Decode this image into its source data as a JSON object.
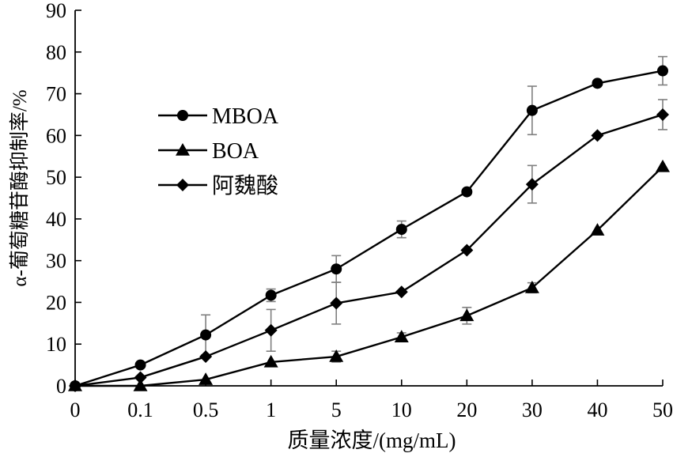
{
  "chart_data": {
    "type": "line",
    "xlabel": "质量浓度/(mg/mL)",
    "ylabel": "α-葡萄糖苷酶抑制率/%",
    "categories": [
      "0",
      "0.1",
      "0.5",
      "1",
      "5",
      "10",
      "20",
      "30",
      "40",
      "50"
    ],
    "ylim": [
      0,
      90
    ],
    "yticks": [
      "0",
      "10",
      "20",
      "30",
      "40",
      "50",
      "60",
      "70",
      "80",
      "90"
    ],
    "grid": false,
    "legend_position": "upper-left",
    "series": [
      {
        "name": "MBOA",
        "marker": "circle",
        "values": [
          0,
          5,
          12.2,
          21.7,
          28,
          37.5,
          46.5,
          66,
          72.5,
          75.5
        ],
        "errors": [
          0,
          0,
          4.8,
          1.5,
          3.2,
          2.0,
          0,
          5.8,
          0,
          3.4
        ]
      },
      {
        "name": "BOA",
        "marker": "triangle",
        "values": [
          0,
          0,
          1.5,
          5.7,
          7.0,
          11.7,
          16.8,
          23.5,
          37.3,
          52.5
        ],
        "errors": [
          0,
          0,
          0,
          0,
          1.3,
          1.0,
          2.0,
          1.2,
          0,
          0
        ]
      },
      {
        "name": "阿魏酸",
        "marker": "diamond",
        "values": [
          0,
          2.0,
          7.0,
          13.3,
          19.8,
          22.5,
          32.5,
          48.3,
          60,
          65
        ],
        "errors": [
          0,
          0,
          0,
          5.0,
          5.0,
          0,
          0,
          4.5,
          0,
          3.6
        ]
      }
    ],
    "colors": {
      "line": "#000000",
      "errorbar": "#7f7f7f"
    }
  }
}
